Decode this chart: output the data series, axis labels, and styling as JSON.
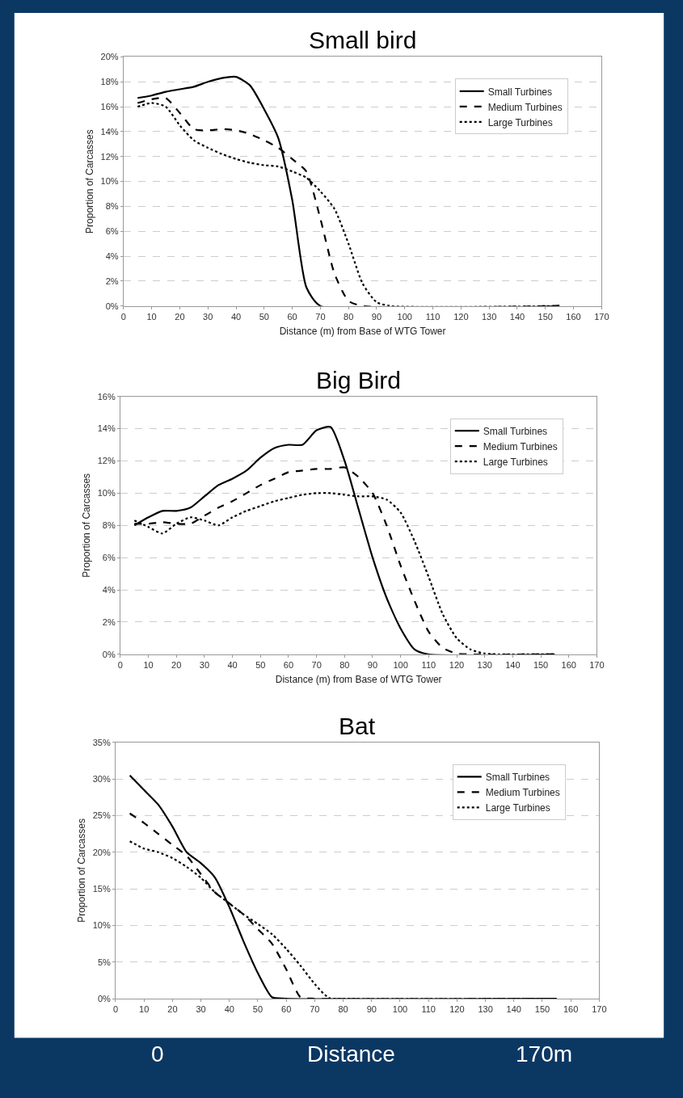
{
  "chart_data": [
    {
      "type": "line",
      "title": "Small bird",
      "xlabel": "Distance (m) from Base of WTG Tower",
      "ylabel": "Proportion of Carcasses",
      "legend": "top right",
      "grid": "y",
      "xlim": [
        0,
        170
      ],
      "xticks": [
        0,
        10,
        20,
        30,
        40,
        50,
        60,
        70,
        80,
        90,
        100,
        110,
        120,
        130,
        140,
        150,
        160,
        170
      ],
      "ylim": [
        0,
        20
      ],
      "yticks": [
        {
          "value": 0,
          "label": "0%"
        },
        {
          "value": 2,
          "label": "2%"
        },
        {
          "value": 4,
          "label": "4%"
        },
        {
          "value": 6,
          "label": "6%"
        },
        {
          "value": 8,
          "label": "8%"
        },
        {
          "value": 10,
          "label": "10%"
        },
        {
          "value": 12,
          "label": "12%"
        },
        {
          "value": 14,
          "label": "14%"
        },
        {
          "value": 16,
          "label": "16%"
        },
        {
          "value": 18,
          "label": "18%"
        },
        {
          "value": 20,
          "label": "20%"
        }
      ],
      "series": [
        {
          "name": "Small Turbines",
          "color": "#000000",
          "line_style": "solid",
          "x": [
            5,
            10,
            15,
            20,
            25,
            30,
            35,
            40,
            45,
            50,
            55,
            60,
            65,
            70,
            155
          ],
          "values": [
            16.7,
            16.9,
            17.2,
            17.4,
            17.6,
            18.0,
            18.3,
            18.4,
            17.7,
            15.8,
            13.5,
            8.5,
            1.5,
            0,
            0
          ]
        },
        {
          "name": "Medium Turbines",
          "color": "#000000",
          "line_style": "dashed",
          "x": [
            5,
            10,
            15,
            20,
            25,
            30,
            35,
            40,
            45,
            50,
            55,
            60,
            65,
            70,
            75,
            80,
            85,
            155
          ],
          "values": [
            16.3,
            16.6,
            16.7,
            15.5,
            14.2,
            14.1,
            14.2,
            14.1,
            13.8,
            13.3,
            12.7,
            11.8,
            10.8,
            7.0,
            2.6,
            0.4,
            0,
            0
          ]
        },
        {
          "name": "Large Turbines",
          "color": "#000000",
          "line_style": "dotted",
          "x": [
            5,
            10,
            15,
            20,
            25,
            30,
            35,
            40,
            45,
            50,
            55,
            60,
            65,
            70,
            75,
            80,
            85,
            90,
            95,
            155
          ],
          "values": [
            16.0,
            16.3,
            16.0,
            14.5,
            13.3,
            12.7,
            12.2,
            11.8,
            11.5,
            11.3,
            11.2,
            10.8,
            10.3,
            9.2,
            7.8,
            5.0,
            1.8,
            0.3,
            0,
            0
          ]
        }
      ]
    },
    {
      "type": "line",
      "title": "Big Bird",
      "xlabel": "Distance (m) from Base of WTG Tower",
      "ylabel": "Proportion of Carcasses",
      "legend": "top right",
      "grid": "y",
      "xlim": [
        0,
        170
      ],
      "xticks": [
        0,
        10,
        20,
        30,
        40,
        50,
        60,
        70,
        80,
        90,
        100,
        110,
        120,
        130,
        140,
        150,
        160,
        170
      ],
      "ylim": [
        0,
        16
      ],
      "yticks": [
        {
          "value": 0,
          "label": "0%"
        },
        {
          "value": 2,
          "label": "2%"
        },
        {
          "value": 4,
          "label": "4%"
        },
        {
          "value": 6,
          "label": "6%"
        },
        {
          "value": 8,
          "label": "8%"
        },
        {
          "value": 10,
          "label": "10%"
        },
        {
          "value": 12,
          "label": "12%"
        },
        {
          "value": 14,
          "label": "14%"
        },
        {
          "value": 16,
          "label": "16%"
        }
      ],
      "series": [
        {
          "name": "Small Turbines",
          "color": "#000000",
          "line_style": "solid",
          "x": [
            5,
            10,
            15,
            20,
            25,
            30,
            35,
            40,
            45,
            50,
            55,
            60,
            65,
            70,
            75,
            80,
            85,
            90,
            95,
            100,
            105,
            110,
            155
          ],
          "values": [
            8.0,
            8.5,
            8.9,
            8.9,
            9.1,
            9.8,
            10.5,
            10.9,
            11.4,
            12.2,
            12.8,
            13.0,
            13.0,
            13.9,
            14.1,
            12.0,
            9.0,
            6.0,
            3.5,
            1.6,
            0.3,
            0,
            0
          ]
        },
        {
          "name": "Medium Turbines",
          "color": "#000000",
          "line_style": "dashed",
          "x": [
            5,
            10,
            15,
            20,
            25,
            30,
            35,
            40,
            45,
            50,
            55,
            60,
            65,
            70,
            75,
            80,
            85,
            90,
            95,
            100,
            105,
            110,
            115,
            120,
            125,
            155
          ],
          "values": [
            8.1,
            8.1,
            8.2,
            8.1,
            8.1,
            8.6,
            9.1,
            9.5,
            10.0,
            10.5,
            10.9,
            11.3,
            11.4,
            11.5,
            11.5,
            11.6,
            11.0,
            10.0,
            8.0,
            5.5,
            3.3,
            1.4,
            0.4,
            0.05,
            0,
            0
          ]
        },
        {
          "name": "Large Turbines",
          "color": "#000000",
          "line_style": "dotted",
          "x": [
            5,
            10,
            15,
            20,
            25,
            30,
            35,
            40,
            45,
            50,
            55,
            60,
            65,
            70,
            75,
            80,
            85,
            90,
            95,
            100,
            105,
            110,
            115,
            120,
            125,
            130,
            135,
            155
          ],
          "values": [
            8.3,
            7.9,
            7.5,
            8.1,
            8.5,
            8.3,
            8.0,
            8.5,
            8.9,
            9.2,
            9.5,
            9.7,
            9.9,
            10.0,
            10.0,
            9.9,
            9.8,
            9.8,
            9.6,
            8.8,
            7.0,
            4.8,
            2.5,
            1.0,
            0.3,
            0.05,
            0,
            0
          ]
        }
      ]
    },
    {
      "type": "line",
      "title": "Bat",
      "ylabel": "Proportion of Carcasses",
      "legend": "top right",
      "grid": "y",
      "xlim": [
        0,
        170
      ],
      "xticks": [
        0,
        10,
        20,
        30,
        40,
        50,
        60,
        70,
        80,
        90,
        100,
        110,
        120,
        130,
        140,
        150,
        160,
        170
      ],
      "ylim": [
        0,
        35
      ],
      "yticks": [
        {
          "value": 0,
          "label": "0%"
        },
        {
          "value": 5,
          "label": "5%"
        },
        {
          "value": 10,
          "label": "10%"
        },
        {
          "value": 15,
          "label": "15%"
        },
        {
          "value": 20,
          "label": "20%"
        },
        {
          "value": 25,
          "label": "25%"
        },
        {
          "value": 30,
          "label": "30%"
        },
        {
          "value": 35,
          "label": "35%"
        }
      ],
      "annotations": [
        "0",
        "Distance",
        "170m"
      ],
      "series": [
        {
          "name": "Small Turbines",
          "color": "#000000",
          "line_style": "solid",
          "x": [
            5,
            10,
            15,
            20,
            25,
            30,
            35,
            40,
            45,
            50,
            55,
            60,
            155
          ],
          "values": [
            30.5,
            28.5,
            26.5,
            23.5,
            20.0,
            18.5,
            16.5,
            12.5,
            7.8,
            3.5,
            0.2,
            0,
            0
          ]
        },
        {
          "name": "Medium Turbines",
          "color": "#000000",
          "line_style": "dashed",
          "x": [
            5,
            10,
            15,
            20,
            25,
            30,
            35,
            40,
            45,
            50,
            55,
            60,
            65,
            70,
            155
          ],
          "values": [
            25.3,
            24,
            22.5,
            21,
            19.5,
            17,
            14.5,
            13,
            11.5,
            9.5,
            7.5,
            4,
            0.2,
            0,
            0
          ]
        },
        {
          "name": "Large Turbines",
          "color": "#000000",
          "line_style": "dotted",
          "x": [
            5,
            10,
            15,
            20,
            25,
            30,
            35,
            40,
            45,
            50,
            55,
            60,
            65,
            70,
            75,
            80,
            155
          ],
          "values": [
            21.5,
            20.5,
            20,
            19.2,
            18,
            16.5,
            14.5,
            13,
            11.5,
            10.2,
            8.8,
            6.8,
            4.5,
            2,
            0.1,
            0,
            0
          ]
        }
      ]
    }
  ]
}
